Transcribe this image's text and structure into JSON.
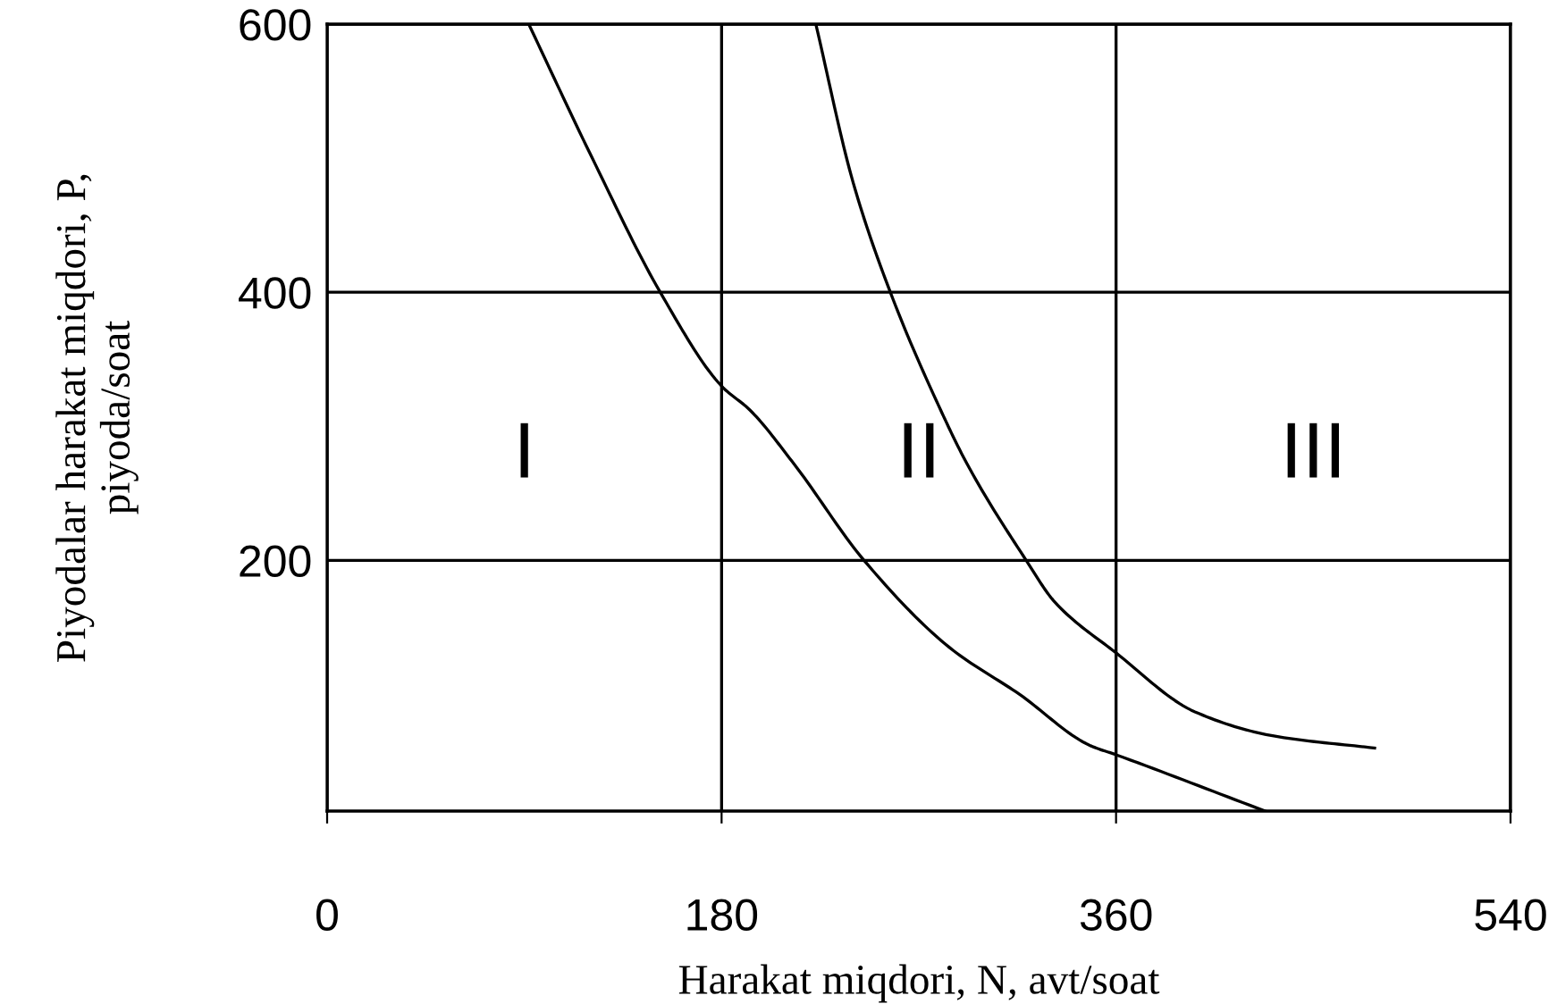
{
  "chart_data": {
    "type": "line",
    "xlabel": "Harakat miqdori, N, avt/soat",
    "ylabel": "Piyodalar harakat miqdori, P,\npiyoda/soat",
    "xlim": [
      0,
      540
    ],
    "xticks": [
      0,
      180,
      360,
      540
    ],
    "ylim": [
      13,
      600
    ],
    "yticks": [
      200,
      400,
      600
    ],
    "grid": true,
    "marker": "none",
    "line_style": "solid",
    "series": [
      {
        "color": "#000000",
        "x": [
          92,
          121,
          152,
          180,
          193,
          213,
          245,
          284,
          316,
          348,
          360,
          428
        ],
        "values": [
          600,
          500,
          400,
          330,
          312,
          272,
          200,
          135,
          100,
          62,
          55,
          13
        ]
      },
      {
        "color": "#000000",
        "x": [
          223,
          240,
          257,
          280,
          292,
          319,
          332,
          360,
          396,
          432,
          478
        ],
        "values": [
          600,
          482,
          400,
          312,
          272,
          200,
          169,
          131,
          87,
          69,
          60
        ]
      }
    ],
    "annotations": [
      "I",
      "II",
      "III"
    ]
  }
}
